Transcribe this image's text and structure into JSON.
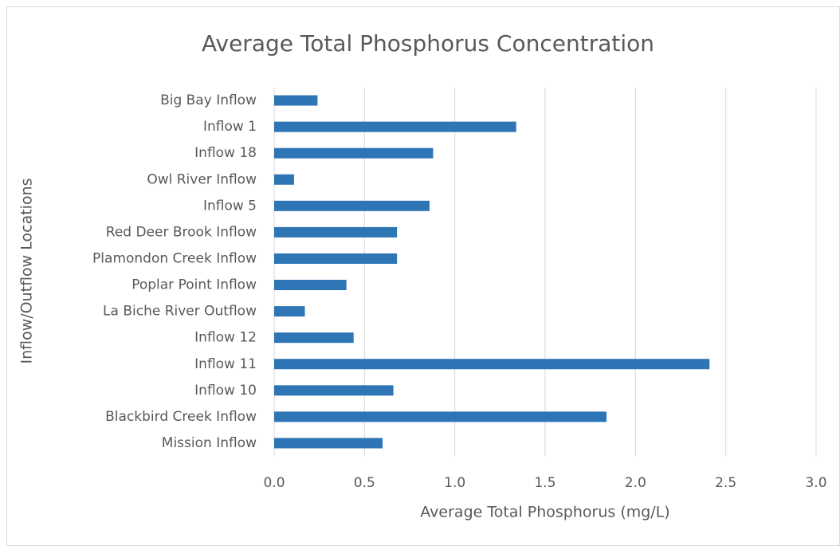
{
  "chart_data": {
    "type": "barh",
    "title": "Average Total Phosphorus Concentration",
    "xlabel": "Average Total Phosphorus (mg/L)",
    "ylabel": "Inflow/Outflow Locations",
    "categories": [
      "Big Bay Inflow",
      "Inflow 1",
      "Inflow 18",
      "Owl River Inflow",
      "Inflow 5",
      "Red Deer Brook Inflow",
      "Plamondon Creek Inflow",
      "Poplar Point Inflow",
      "La Biche River Outflow",
      "Inflow 12",
      "Inflow 11",
      "Inflow 10",
      "Blackbird Creek Inflow",
      "Mission Inflow"
    ],
    "values": [
      0.24,
      1.34,
      0.88,
      0.11,
      0.86,
      0.68,
      0.68,
      0.4,
      0.17,
      0.44,
      2.41,
      0.66,
      1.84,
      0.6
    ],
    "color": "#2e75b6",
    "xlim": [
      0,
      3
    ],
    "xticks": [
      {
        "value": 0,
        "label": "0.0"
      },
      0.5,
      {
        "value": 1,
        "label": "1.0"
      },
      1.5,
      {
        "value": 2,
        "label": "2.0"
      },
      2.5,
      {
        "value": 3,
        "label": "3.0"
      }
    ],
    "grid": true
  }
}
